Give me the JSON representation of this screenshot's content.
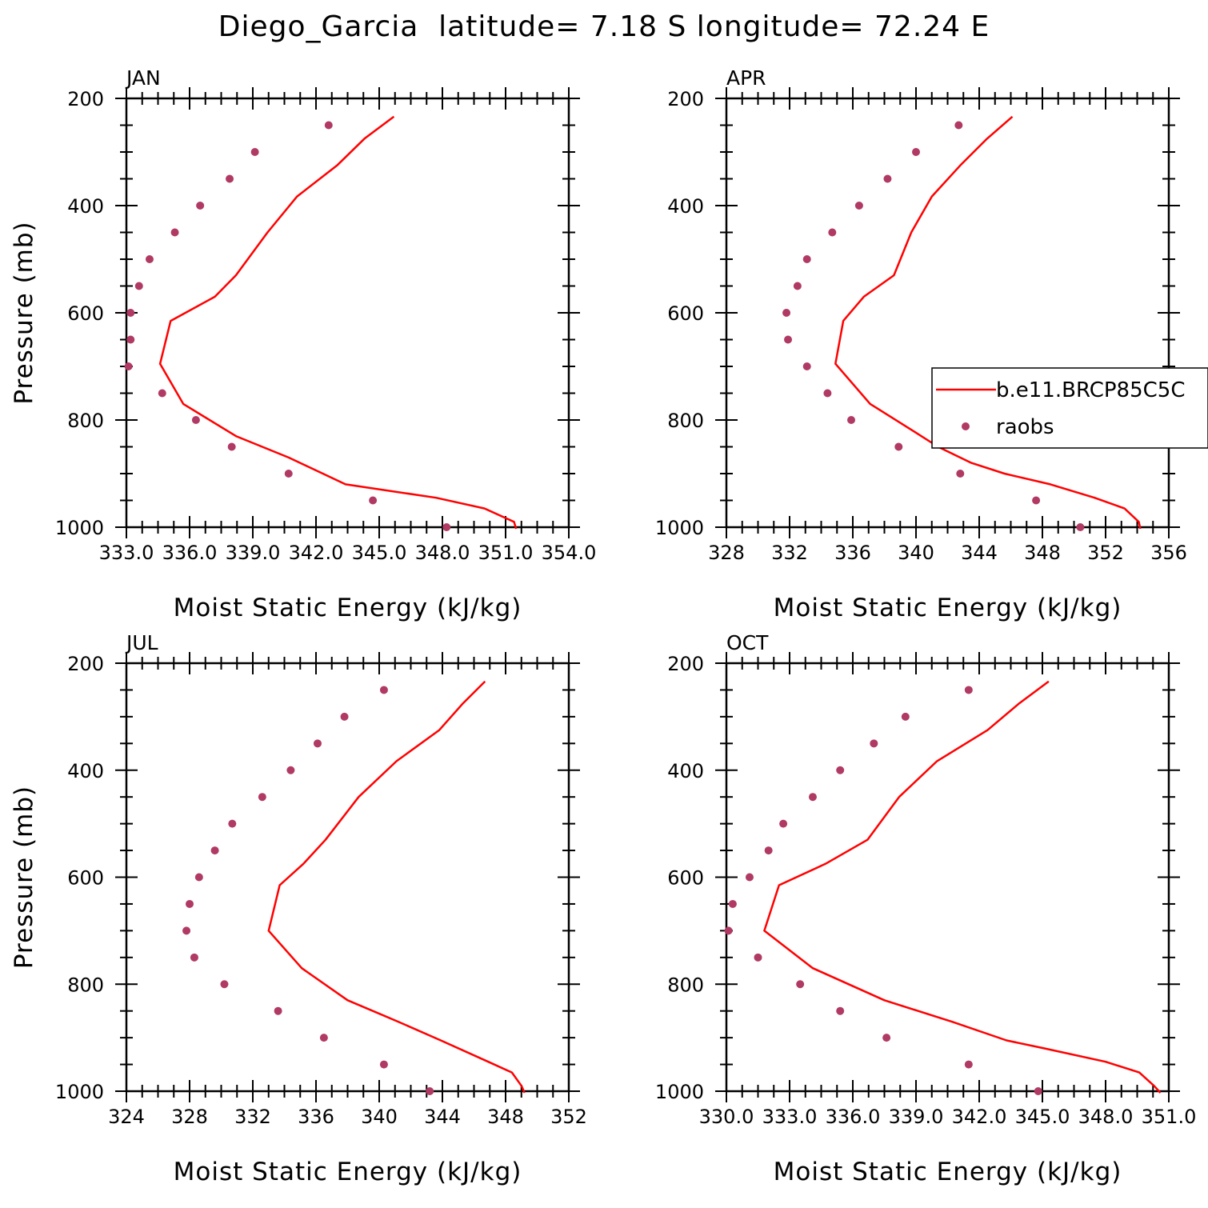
{
  "figure": {
    "title": "Diego_Garcia  latitude= 7.18 S longitude= 72.24 E",
    "model_color": "#ff0000",
    "obs_color": "#b03a64",
    "legend": {
      "model_label": "b.e11.BRCP85C5C",
      "obs_label": "raobs",
      "placement": "right, overlapping APR panel"
    }
  },
  "chart_data": [
    {
      "type": "line",
      "title": "JAN",
      "xlabel": "Moist Static Energy (kJ/kg)",
      "ylabel": "Pressure (mb)",
      "xlim": [
        333,
        354
      ],
      "xticks": [
        333,
        336,
        339,
        342,
        345,
        348,
        351,
        354
      ],
      "xtick_labels": [
        "333.0",
        "336.0",
        "339.0",
        "342.0",
        "345.0",
        "348.0",
        "351.0",
        "354.0"
      ],
      "ylim": [
        200,
        1000
      ],
      "yticks": [
        200,
        400,
        600,
        800,
        1000
      ],
      "y_reversed": true,
      "series": [
        {
          "name": "b.e11.BRCP85C5C",
          "style": "line",
          "points": [
            [
              345.7,
              234
            ],
            [
              344.3,
              275
            ],
            [
              343.0,
              325
            ],
            [
              341.1,
              383
            ],
            [
              339.7,
              450
            ],
            [
              338.2,
              530
            ],
            [
              337.2,
              570
            ],
            [
              335.1,
              615
            ],
            [
              334.6,
              695
            ],
            [
              335.7,
              770
            ],
            [
              338.2,
              830
            ],
            [
              340.7,
              870
            ],
            [
              343.4,
              920
            ],
            [
              347.7,
              945
            ],
            [
              350.0,
              965
            ],
            [
              351.4,
              990
            ],
            [
              351.5,
              1003
            ]
          ]
        },
        {
          "name": "raobs",
          "style": "markers",
          "points": [
            [
              342.6,
              250
            ],
            [
              339.1,
              300
            ],
            [
              337.9,
              350
            ],
            [
              336.5,
              400
            ],
            [
              335.3,
              450
            ],
            [
              334.1,
              500
            ],
            [
              333.6,
              550
            ],
            [
              333.2,
              600
            ],
            [
              333.2,
              650
            ],
            [
              333.1,
              700
            ],
            [
              334.7,
              750
            ],
            [
              336.3,
              800
            ],
            [
              338.0,
              850
            ],
            [
              340.7,
              900
            ],
            [
              344.7,
              950
            ],
            [
              348.2,
              1000
            ]
          ]
        }
      ]
    },
    {
      "type": "line",
      "title": "APR",
      "xlabel": "Moist Static Energy (kJ/kg)",
      "ylabel": "",
      "xlim": [
        328,
        356
      ],
      "xticks": [
        328,
        332,
        336,
        340,
        344,
        348,
        352,
        356
      ],
      "xtick_labels": [
        "328",
        "332",
        "336",
        "340",
        "344",
        "348",
        "352",
        "356"
      ],
      "ylim": [
        200,
        1000
      ],
      "yticks": [
        200,
        400,
        600,
        800,
        1000
      ],
      "y_reversed": true,
      "series": [
        {
          "name": "b.e11.BRCP85C5C",
          "style": "line",
          "points": [
            [
              346.1,
              234
            ],
            [
              344.5,
              275
            ],
            [
              342.8,
              325
            ],
            [
              341.0,
              383
            ],
            [
              339.7,
              450
            ],
            [
              338.6,
              530
            ],
            [
              336.7,
              570
            ],
            [
              335.4,
              615
            ],
            [
              334.9,
              695
            ],
            [
              337.1,
              770
            ],
            [
              339.8,
              820
            ],
            [
              341.4,
              850
            ],
            [
              343.5,
              880
            ],
            [
              345.6,
              900
            ],
            [
              348.5,
              920
            ],
            [
              351.3,
              945
            ],
            [
              353.2,
              965
            ],
            [
              354.1,
              990
            ],
            [
              354.2,
              1003
            ]
          ]
        },
        {
          "name": "raobs",
          "style": "markers",
          "points": [
            [
              342.7,
              250
            ],
            [
              340.0,
              300
            ],
            [
              338.2,
              350
            ],
            [
              336.4,
              400
            ],
            [
              334.7,
              450
            ],
            [
              333.1,
              500
            ],
            [
              332.5,
              550
            ],
            [
              331.8,
              600
            ],
            [
              331.9,
              650
            ],
            [
              333.1,
              700
            ],
            [
              334.4,
              750
            ],
            [
              335.9,
              800
            ],
            [
              338.9,
              850
            ],
            [
              342.8,
              900
            ],
            [
              347.6,
              950
            ],
            [
              350.4,
              1000
            ]
          ]
        }
      ]
    },
    {
      "type": "line",
      "title": "JUL",
      "xlabel": "Moist Static Energy (kJ/kg)",
      "ylabel": "Pressure (mb)",
      "xlim": [
        324,
        352
      ],
      "xticks": [
        324,
        328,
        332,
        336,
        340,
        344,
        348,
        352
      ],
      "xtick_labels": [
        "324",
        "328",
        "332",
        "336",
        "340",
        "344",
        "348",
        "352"
      ],
      "ylim": [
        200,
        1000
      ],
      "yticks": [
        200,
        400,
        600,
        800,
        1000
      ],
      "y_reversed": true,
      "series": [
        {
          "name": "b.e11.BRCP85C5C",
          "style": "line",
          "points": [
            [
              346.7,
              234
            ],
            [
              345.3,
              275
            ],
            [
              343.8,
              325
            ],
            [
              341.1,
              383
            ],
            [
              338.7,
              450
            ],
            [
              336.6,
              530
            ],
            [
              335.2,
              575
            ],
            [
              333.7,
              615
            ],
            [
              333.0,
              700
            ],
            [
              335.1,
              770
            ],
            [
              338.0,
              830
            ],
            [
              341.2,
              870
            ],
            [
              343.9,
              905
            ],
            [
              346.9,
              945
            ],
            [
              348.4,
              965
            ],
            [
              349.0,
              990
            ],
            [
              349.2,
              1003
            ]
          ]
        },
        {
          "name": "raobs",
          "style": "markers",
          "points": [
            [
              340.3,
              250
            ],
            [
              337.8,
              300
            ],
            [
              336.1,
              350
            ],
            [
              334.4,
              400
            ],
            [
              332.6,
              450
            ],
            [
              330.7,
              500
            ],
            [
              329.6,
              550
            ],
            [
              328.6,
              600
            ],
            [
              328.0,
              650
            ],
            [
              327.8,
              700
            ],
            [
              328.3,
              750
            ],
            [
              330.2,
              800
            ],
            [
              333.6,
              850
            ],
            [
              336.5,
              900
            ],
            [
              340.3,
              950
            ],
            [
              343.2,
              1000
            ]
          ]
        }
      ]
    },
    {
      "type": "line",
      "title": "OCT",
      "xlabel": "Moist Static Energy (kJ/kg)",
      "ylabel": "",
      "xlim": [
        330,
        351
      ],
      "xticks": [
        330,
        333,
        336,
        339,
        342,
        345,
        348,
        351
      ],
      "xtick_labels": [
        "330.0",
        "333.0",
        "336.0",
        "339.0",
        "342.0",
        "345.0",
        "348.0",
        "351.0"
      ],
      "ylim": [
        200,
        1000
      ],
      "yticks": [
        200,
        400,
        600,
        800,
        1000
      ],
      "y_reversed": true,
      "series": [
        {
          "name": "b.e11.BRCP85C5C",
          "style": "line",
          "points": [
            [
              345.3,
              234
            ],
            [
              343.9,
              275
            ],
            [
              342.4,
              325
            ],
            [
              340.0,
              383
            ],
            [
              338.2,
              450
            ],
            [
              336.7,
              530
            ],
            [
              334.7,
              575
            ],
            [
              332.5,
              615
            ],
            [
              331.8,
              700
            ],
            [
              334.1,
              770
            ],
            [
              337.5,
              830
            ],
            [
              340.7,
              870
            ],
            [
              343.3,
              905
            ],
            [
              345.1,
              920
            ],
            [
              348.0,
              945
            ],
            [
              349.6,
              965
            ],
            [
              350.3,
              990
            ],
            [
              350.6,
              1003
            ]
          ]
        },
        {
          "name": "raobs",
          "style": "markers",
          "points": [
            [
              341.5,
              250
            ],
            [
              338.5,
              300
            ],
            [
              337.0,
              350
            ],
            [
              335.4,
              400
            ],
            [
              334.1,
              450
            ],
            [
              332.7,
              500
            ],
            [
              332.0,
              550
            ],
            [
              331.1,
              600
            ],
            [
              330.3,
              650
            ],
            [
              330.1,
              700
            ],
            [
              331.5,
              750
            ],
            [
              333.5,
              800
            ],
            [
              335.4,
              850
            ],
            [
              337.6,
              900
            ],
            [
              341.5,
              950
            ],
            [
              344.8,
              1000
            ]
          ]
        }
      ]
    }
  ]
}
